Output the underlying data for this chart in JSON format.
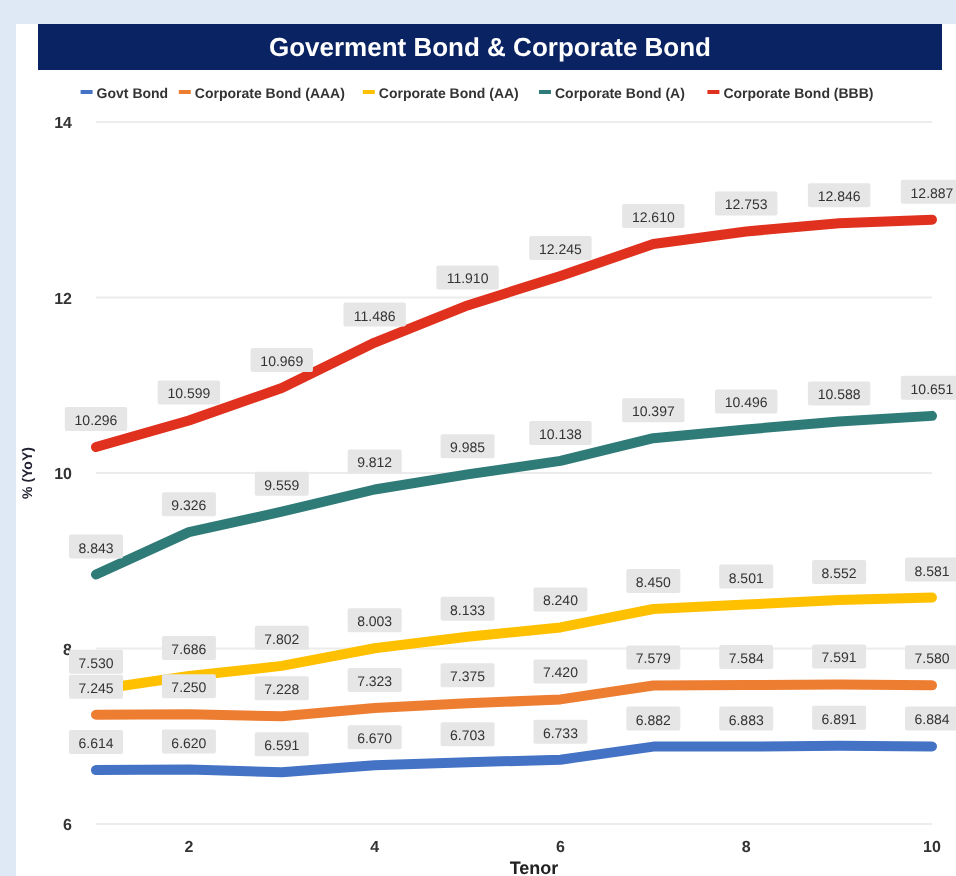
{
  "chart_data": {
    "type": "line",
    "title": "Goverment Bond & Corporate Bond",
    "xlabel": "Tenor",
    "ylabel": "% (YoY)",
    "x": [
      1,
      2,
      3,
      4,
      5,
      6,
      7,
      8,
      9,
      10
    ],
    "series": [
      {
        "name": "Govt Bond",
        "color": "#4472c4",
        "values": [
          6.614,
          6.62,
          6.591,
          6.67,
          6.703,
          6.733,
          6.882,
          6.883,
          6.891,
          6.884
        ],
        "value_labels": [
          "6.614",
          "6.620",
          "6.591",
          "6.670",
          "6.703",
          "6.733",
          "6.882",
          "6.883",
          "6.891",
          "6.884"
        ]
      },
      {
        "name": "Corporate Bond (AAA)",
        "color": "#ed7d31",
        "values": [
          7.245,
          7.25,
          7.228,
          7.323,
          7.375,
          7.42,
          7.579,
          7.584,
          7.591,
          7.58
        ],
        "value_labels": [
          "7.245",
          "7.250",
          "7.228",
          "7.323",
          "7.375",
          "7.420",
          "7.579",
          "7.584",
          "7.591",
          "7.580"
        ]
      },
      {
        "name": "Corporate Bond (AA)",
        "color": "#ffc000",
        "values": [
          7.53,
          7.686,
          7.802,
          8.003,
          8.133,
          8.24,
          8.45,
          8.501,
          8.552,
          8.581
        ],
        "value_labels": [
          "7.530",
          "7.686",
          "7.802",
          "8.003",
          "8.133",
          "8.240",
          "8.450",
          "8.501",
          "8.552",
          "8.581"
        ]
      },
      {
        "name": "Corporate Bond (A)",
        "color": "#2f7b78",
        "values": [
          8.843,
          9.326,
          9.559,
          9.812,
          9.985,
          10.138,
          10.397,
          10.496,
          10.588,
          10.651
        ],
        "value_labels": [
          "8.843",
          "9.326",
          "9.559",
          "9.812",
          "9.985",
          "10.138",
          "10.397",
          "10.496",
          "10.588",
          "10.651"
        ]
      },
      {
        "name": "Corporate Bond (BBB)",
        "color": "#e0301e",
        "values": [
          10.296,
          10.599,
          10.969,
          11.486,
          11.91,
          12.245,
          12.61,
          12.753,
          12.846,
          12.887
        ],
        "value_labels": [
          "10.296",
          "10.599",
          "10.969",
          "11.486",
          "11.910",
          "12.245",
          "12.610",
          "12.753",
          "12.846",
          "12.887"
        ]
      }
    ],
    "xlim": [
      1,
      10
    ],
    "xticks": [
      2,
      4,
      6,
      8,
      10
    ],
    "ylim": [
      6,
      14
    ],
    "yticks": [
      6,
      8,
      10,
      12,
      14
    ],
    "grid": "y",
    "legend": "top",
    "marker": "none",
    "line_style": "solid"
  }
}
